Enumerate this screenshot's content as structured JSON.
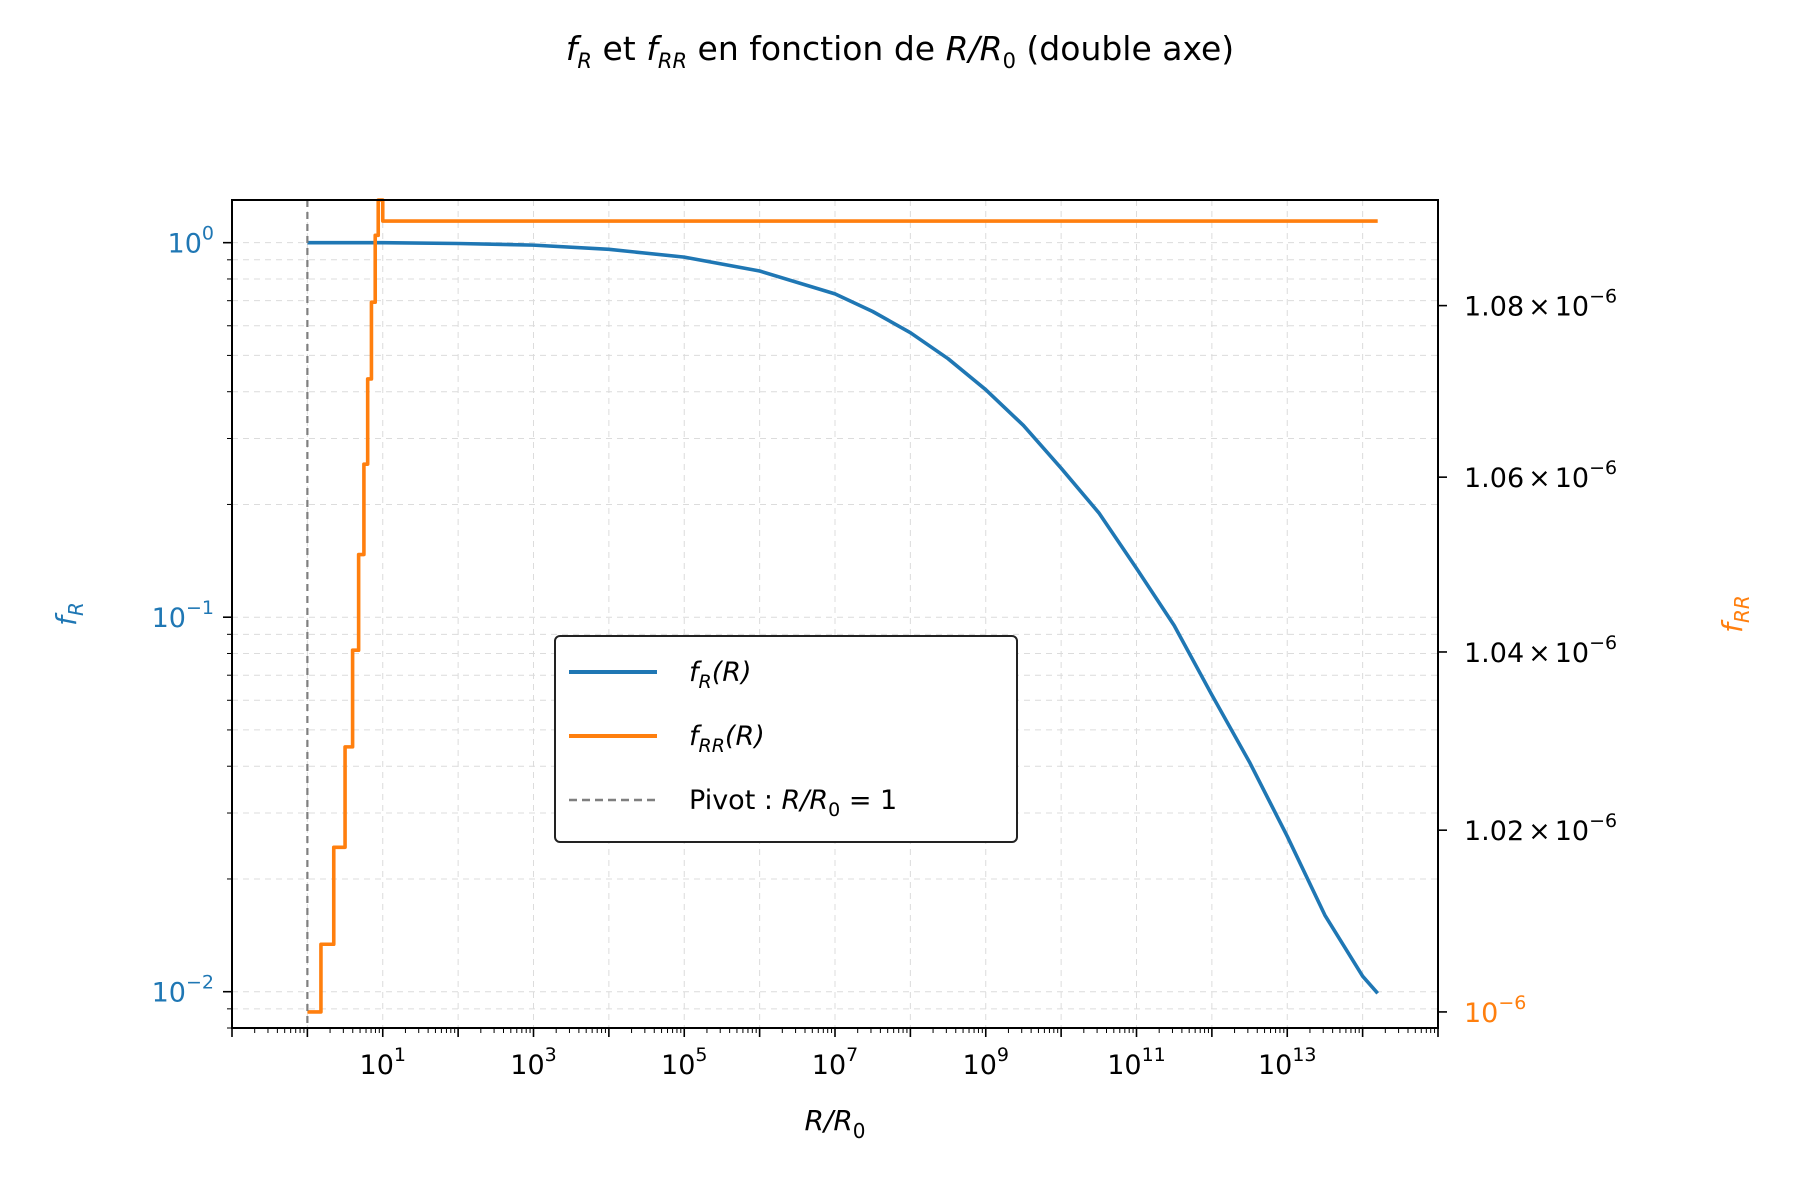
{
  "chart_data": {
    "type": "line",
    "title": {
      "a": "f",
      "a_sub": "R",
      "b": " et ",
      "c": "f",
      "c_sub": "RR",
      "d": " en fonction de ",
      "e": "R/R",
      "e_sub": "0",
      "f": " (double axe)"
    },
    "xlabel": {
      "main": "R/R",
      "sub": "0"
    },
    "ylabel_left": {
      "main": "f",
      "sub": "R"
    },
    "ylabel_right": {
      "main": "f",
      "sub": "RR"
    },
    "xscale": "log",
    "xlim": [
      0.1,
      1000000000000000.0
    ],
    "x_ticks": [
      {
        "value": 10,
        "base": "10",
        "exp": "1"
      },
      {
        "value": 1000,
        "base": "10",
        "exp": "3"
      },
      {
        "value": 100000,
        "base": "10",
        "exp": "5"
      },
      {
        "value": 10000000,
        "base": "10",
        "exp": "7"
      },
      {
        "value": 1000000000,
        "base": "10",
        "exp": "9"
      },
      {
        "value": 100000000000,
        "base": "10",
        "exp": "11"
      },
      {
        "value": 10000000000000,
        "base": "10",
        "exp": "13"
      }
    ],
    "y_left": {
      "scale": "log",
      "ylim": [
        0.008,
        1.3
      ],
      "ticks": [
        {
          "value": 1,
          "base": "10",
          "exp": "0"
        },
        {
          "value": 0.1,
          "base": "10",
          "exp": "−1"
        },
        {
          "value": 0.01,
          "base": "10",
          "exp": "−2"
        }
      ],
      "color": "#1f77b4"
    },
    "y_right": {
      "scale": "log",
      "ylim": [
        9.9825e-07,
        1.0925e-06
      ],
      "ticks": [
        {
          "value": 1.08e-06,
          "mant": "1.08",
          "times": "×",
          "base": "10",
          "exp": "−6"
        },
        {
          "value": 1.06e-06,
          "mant": "1.06",
          "times": "×",
          "base": "10",
          "exp": "−6"
        },
        {
          "value": 1.04e-06,
          "mant": "1.04",
          "times": "×",
          "base": "10",
          "exp": "−6"
        },
        {
          "value": 1.02e-06,
          "mant": "1.02",
          "times": "×",
          "base": "10",
          "exp": "−6"
        },
        {
          "value": 1e-06,
          "mant": "",
          "times": "",
          "base": "10",
          "exp": "−6"
        }
      ],
      "color": "#ff7f0e"
    },
    "series": [
      {
        "name": {
          "main": "f",
          "sub": "R",
          "tail": "(R)"
        },
        "axis": "left",
        "color": "#1f77b4",
        "x_log10": [
          0,
          1,
          2,
          3,
          4,
          5,
          6,
          7,
          7.5,
          8,
          8.5,
          9,
          9.5,
          10,
          10.5,
          11,
          11.5,
          12,
          12.5,
          13,
          13.5,
          14,
          14.2
        ],
        "y": [
          1.0,
          1.0,
          0.995,
          0.985,
          0.96,
          0.915,
          0.84,
          0.73,
          0.655,
          0.575,
          0.49,
          0.405,
          0.325,
          0.25,
          0.19,
          0.135,
          0.095,
          0.062,
          0.041,
          0.026,
          0.016,
          0.011,
          0.0099
        ]
      },
      {
        "name": {
          "main": "f",
          "sub": "RR",
          "tail": "(R)"
        },
        "axis": "right",
        "color": "#ff7f0e",
        "step": true,
        "x_log10": [
          0,
          0.18,
          0.35,
          0.5,
          0.6,
          0.68,
          0.75,
          0.8,
          0.85,
          0.9,
          0.94,
          0.97,
          1.0,
          14.2
        ],
        "y": [
          1e-06,
          1.0074e-06,
          1.0181e-06,
          1.0293e-06,
          1.0402e-06,
          1.0511e-06,
          1.0615e-06,
          1.0714e-06,
          1.0804e-06,
          1.0883e-06,
          1.0925e-06,
          1.0925e-06,
          1.09e-06,
          1.09e-06
        ]
      },
      {
        "name": {
          "main": "Pivot : ",
          "expr": "R/R",
          "sub": "0",
          "tail": " = 1"
        },
        "type": "vline",
        "x": 1,
        "color": "#7f7f7f",
        "dashed": true
      }
    ],
    "grid": true,
    "legend_position": "center"
  }
}
